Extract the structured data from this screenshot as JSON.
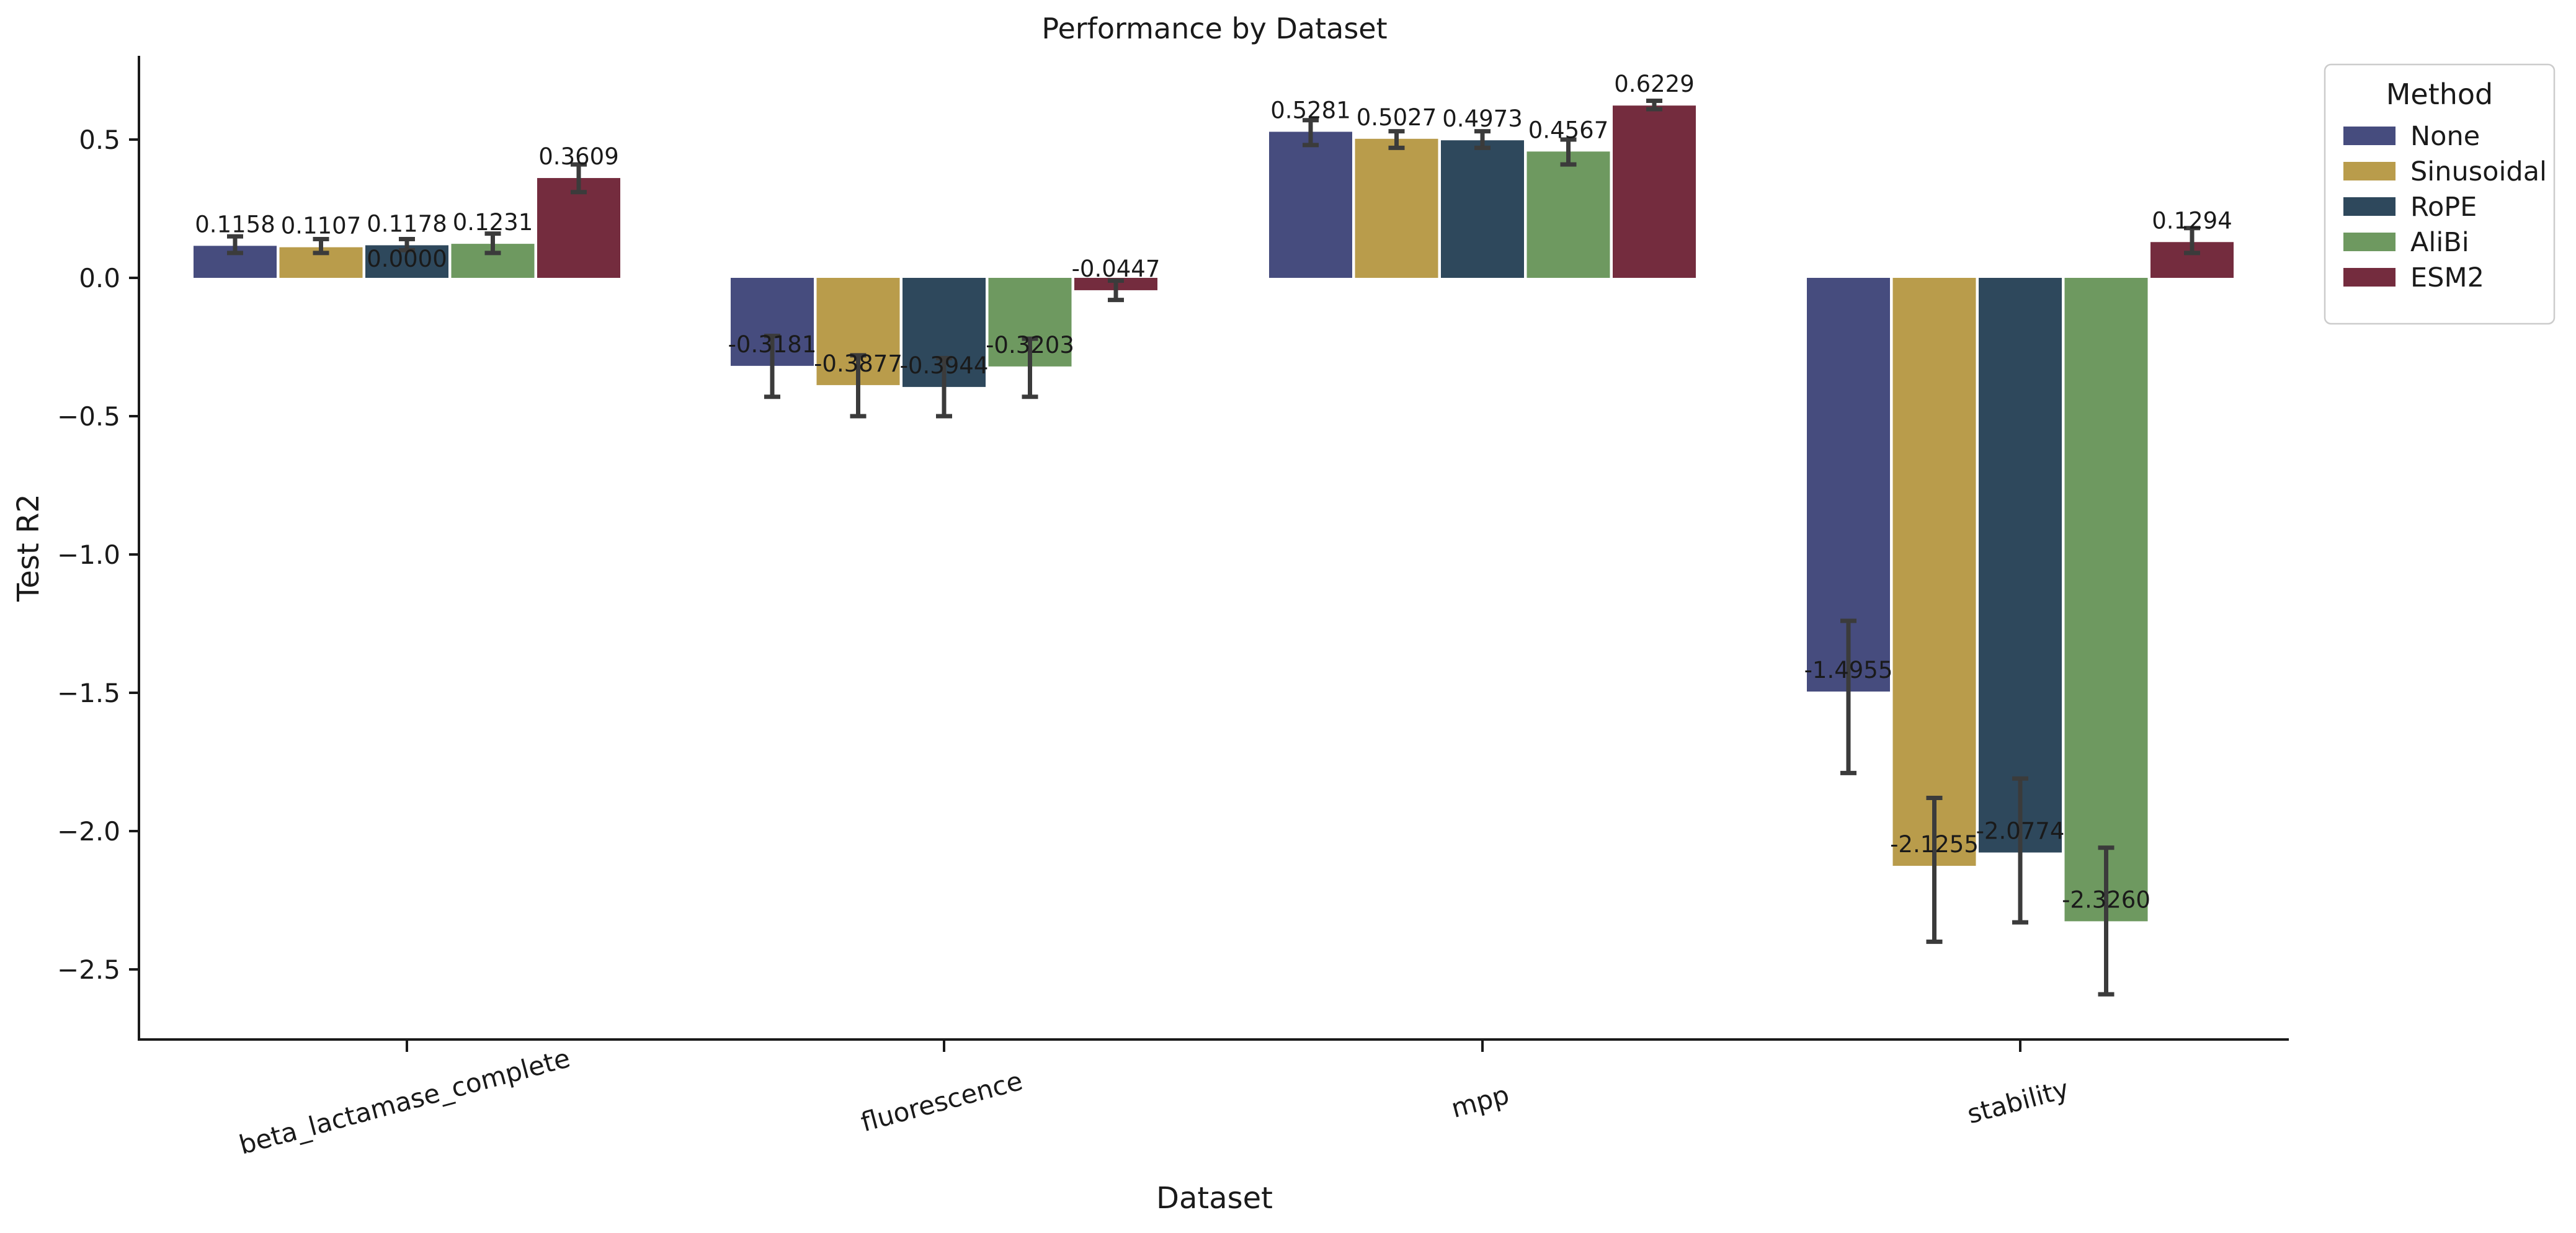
{
  "chart_data": {
    "type": "bar",
    "title": "Performance by Dataset",
    "xlabel": "Dataset",
    "ylabel": "Test R2",
    "categories": [
      "beta_lactamase_complete",
      "fluorescence",
      "mpp",
      "stability"
    ],
    "ylim": [
      -2.75,
      0.8
    ],
    "yticks": [
      0.5,
      0.0,
      -0.5,
      -1.0,
      -1.5,
      -2.0,
      -2.5
    ],
    "ytick_labels": [
      "0.5",
      "0.0",
      "−0.5",
      "−1.0",
      "−1.5",
      "−2.0",
      "−2.5"
    ],
    "grid": false,
    "legend": {
      "title": "Method",
      "placement": "top-right outside"
    },
    "series": [
      {
        "name": "None",
        "color": "#464c7e",
        "values": [
          0.1158,
          -0.3181,
          0.5281,
          -1.4955
        ],
        "err_low": [
          0.09,
          -0.43,
          0.48,
          -1.79
        ],
        "err_high": [
          0.15,
          -0.21,
          0.57,
          -1.24
        ],
        "labels": [
          "0.1158",
          "-0.3181",
          "0.5281",
          "-1.4955"
        ]
      },
      {
        "name": "Sinusoidal",
        "color": "#b99c4b",
        "values": [
          0.1107,
          -0.3877,
          0.5027,
          -2.1255
        ],
        "err_low": [
          0.09,
          -0.5,
          0.47,
          -2.4
        ],
        "err_high": [
          0.14,
          -0.28,
          0.53,
          -1.88
        ],
        "labels": [
          "0.1107",
          "-0.3877",
          "0.5027",
          "-2.1255"
        ]
      },
      {
        "name": "RoPE",
        "color": "#2e485c",
        "values": [
          0.1178,
          -0.3944,
          0.4973,
          -2.0774
        ],
        "err_low": [
          0.1,
          -0.5,
          0.47,
          -2.33
        ],
        "err_high": [
          0.14,
          -0.29,
          0.53,
          -1.81
        ],
        "labels": [
          "0.1178",
          "-0.3944",
          "0.4973",
          "-2.0774"
        ],
        "extra_labels": [
          "0.0000",
          "",
          "",
          ""
        ]
      },
      {
        "name": "AliBi",
        "color": "#6e9960",
        "values": [
          0.1231,
          -0.3203,
          0.4567,
          -2.326
        ],
        "err_low": [
          0.09,
          -0.43,
          0.41,
          -2.59
        ],
        "err_high": [
          0.16,
          -0.22,
          0.5,
          -2.06
        ],
        "labels": [
          "0.1231",
          "-0.3203",
          "0.4567",
          "-2.3260"
        ]
      },
      {
        "name": "ESM2",
        "color": "#742c3e",
        "values": [
          0.3609,
          -0.0447,
          0.6229,
          0.1294
        ],
        "err_low": [
          0.31,
          -0.08,
          0.61,
          0.09
        ],
        "err_high": [
          0.41,
          -0.01,
          0.64,
          0.18
        ],
        "labels": [
          "0.3609",
          "-0.0447",
          "0.6229",
          "0.1294"
        ]
      }
    ]
  }
}
